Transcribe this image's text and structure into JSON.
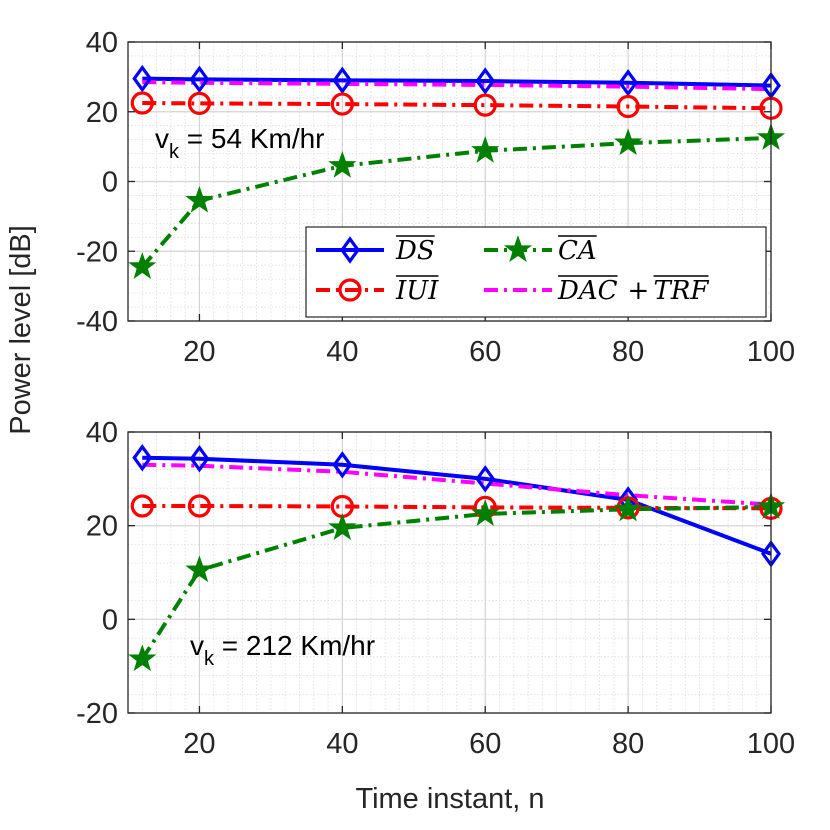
{
  "figure": {
    "ylabel": "Power level [dB]",
    "xlabel": "Time instant, n"
  },
  "legend": {
    "position": "lower-right of top panel",
    "entries": [
      {
        "label": "DS",
        "color": "#0000ff",
        "marker": "diamond",
        "dash": "solid"
      },
      {
        "label": "CA",
        "color": "#008000",
        "marker": "star",
        "dash": "dashdot"
      },
      {
        "label": "IUI",
        "color": "#ff0000",
        "marker": "circle",
        "dash": "dashdot"
      },
      {
        "label": "DAC",
        "label2": "TRF",
        "plus": "+",
        "color": "#ff00ff",
        "marker": "none",
        "dash": "dashdot"
      }
    ]
  },
  "chart_data": [
    {
      "type": "line",
      "annotation": {
        "main": "v",
        "sub": "k",
        "rest": " = 54 Km/hr"
      },
      "xlim": [
        10,
        100
      ],
      "ylim": [
        -40,
        40
      ],
      "xticks": [
        20,
        40,
        60,
        80,
        100
      ],
      "yticks": [
        -40,
        -20,
        0,
        20,
        40
      ],
      "series": [
        {
          "name": "DS",
          "color": "#0000ff",
          "dash": "solid",
          "marker": "diamond",
          "x": [
            12,
            20,
            40,
            60,
            80,
            100
          ],
          "y": [
            29.5,
            29.3,
            29.0,
            28.8,
            28.3,
            27.5
          ]
        },
        {
          "name": "DAC + TRF",
          "color": "#ff00ff",
          "dash": "dashdot",
          "marker": "none",
          "x": [
            12,
            20,
            40,
            60,
            80,
            100
          ],
          "y": [
            28.5,
            28.3,
            28.0,
            27.7,
            27.2,
            26.5
          ]
        },
        {
          "name": "IUI",
          "color": "#ff0000",
          "dash": "dashdot",
          "marker": "circle",
          "x": [
            12,
            20,
            40,
            60,
            80,
            100
          ],
          "y": [
            22.5,
            22.4,
            22.2,
            21.9,
            21.5,
            21.0
          ]
        },
        {
          "name": "CA",
          "color": "#008000",
          "dash": "dashdot",
          "marker": "star",
          "x": [
            12,
            20,
            40,
            60,
            80,
            100
          ],
          "y": [
            -24.5,
            -5.5,
            4.5,
            8.8,
            11.0,
            12.5
          ]
        }
      ]
    },
    {
      "type": "line",
      "annotation": {
        "main": "v",
        "sub": "k",
        "rest": " = 212 Km/hr"
      },
      "xlim": [
        10,
        100
      ],
      "ylim": [
        -20,
        40
      ],
      "xticks": [
        20,
        40,
        60,
        80,
        100
      ],
      "yticks": [
        -20,
        0,
        20,
        40
      ],
      "series": [
        {
          "name": "DS",
          "color": "#0000ff",
          "dash": "solid",
          "marker": "diamond",
          "x": [
            12,
            20,
            40,
            60,
            80,
            100
          ],
          "y": [
            34.5,
            34.3,
            33.0,
            30.0,
            25.5,
            14.0
          ]
        },
        {
          "name": "DAC + TRF",
          "color": "#ff00ff",
          "dash": "dashdot",
          "marker": "none",
          "x": [
            12,
            20,
            40,
            60,
            80,
            100
          ],
          "y": [
            33.0,
            32.8,
            31.5,
            29.0,
            26.5,
            24.5
          ]
        },
        {
          "name": "IUI",
          "color": "#ff0000",
          "dash": "dashdot",
          "marker": "circle",
          "x": [
            12,
            20,
            40,
            60,
            80,
            100
          ],
          "y": [
            24.2,
            24.2,
            24.1,
            23.9,
            23.8,
            23.7
          ]
        },
        {
          "name": "CA",
          "color": "#008000",
          "dash": "dashdot",
          "marker": "star",
          "x": [
            12,
            20,
            40,
            60,
            80,
            100
          ],
          "y": [
            -8.5,
            10.5,
            19.5,
            22.5,
            23.5,
            24.0
          ]
        }
      ]
    }
  ]
}
